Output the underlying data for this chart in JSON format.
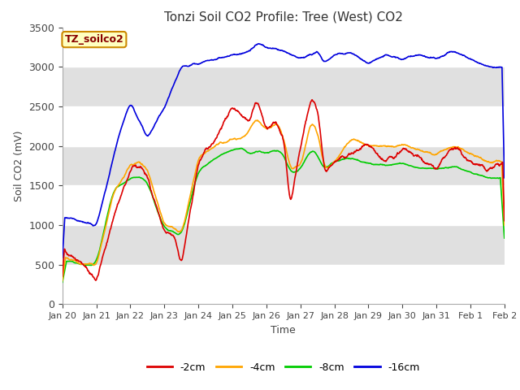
{
  "title": "Tonzi Soil CO2 Profile: Tree (West) CO2",
  "xlabel": "Time",
  "ylabel": "Soil CO2 (mV)",
  "ylim": [
    0,
    3500
  ],
  "legend_label": "TZ_soilco2",
  "series_labels": [
    "-2cm",
    "-4cm",
    "-8cm",
    "-16cm"
  ],
  "series_colors": [
    "#dd0000",
    "#ffa500",
    "#00cc00",
    "#0000dd"
  ],
  "background_color": "#ffffff",
  "band_colors": [
    "#ffffff",
    "#e8e8e8",
    "#ffffff",
    "#e8e8e8",
    "#ffffff",
    "#e8e8e8",
    "#ffffff"
  ],
  "tick_dates": [
    "Jan 20",
    "Jan 21",
    "Jan 22",
    "Jan 23",
    "Jan 24",
    "Jan 25",
    "Jan 26",
    "Jan 27",
    "Jan 28",
    "Jan 29",
    "Jan 30",
    "Jan 31",
    "Feb 1",
    "Feb 2"
  ],
  "yticks": [
    0,
    500,
    1000,
    1500,
    2000,
    2500,
    3000,
    3500
  ]
}
